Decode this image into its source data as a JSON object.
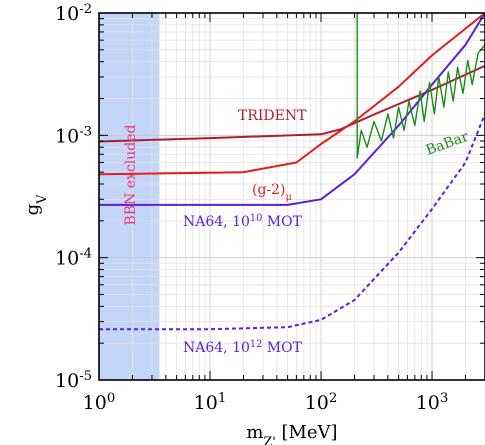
{
  "chart_data": {
    "type": "line",
    "title": "",
    "xlabel": {
      "base": "m",
      "sub": "Z'",
      "rest": " [MeV]"
    },
    "ylabel": {
      "base": "g",
      "sub": "V"
    },
    "x_scale": "log",
    "y_scale": "log",
    "xlim": [
      1,
      3000
    ],
    "ylim": [
      1e-05,
      0.01
    ],
    "grid": true,
    "x_ticks": [
      {
        "value": 1,
        "base": "10",
        "exp": "0"
      },
      {
        "value": 10,
        "base": "10",
        "exp": "1"
      },
      {
        "value": 100,
        "base": "10",
        "exp": "2"
      },
      {
        "value": 1000,
        "base": "10",
        "exp": "3"
      }
    ],
    "y_ticks": [
      {
        "value": 1e-05,
        "base": "10",
        "exp": "-5"
      },
      {
        "value": 0.0001,
        "base": "10",
        "exp": "-4"
      },
      {
        "value": 0.001,
        "base": "10",
        "exp": "-3"
      },
      {
        "value": 0.01,
        "base": "10",
        "exp": "-2"
      }
    ],
    "shaded_regions": [
      {
        "label": "BBN excluded",
        "x_range": [
          1,
          3.5
        ],
        "color": "#c3d5f8",
        "text_color": "#ee3377"
      }
    ],
    "series": [
      {
        "name": "TRIDENT",
        "color": "#b01c2e",
        "style": "solid",
        "x": [
          1,
          10,
          100,
          150,
          300,
          1000,
          3000
        ],
        "y": [
          0.00089,
          0.00095,
          0.00102,
          0.00112,
          0.00148,
          0.00235,
          0.0037
        ]
      },
      {
        "name": "(g-2)μ",
        "color": "#e8191b",
        "style": "solid",
        "x": [
          1,
          20,
          60,
          100,
          200,
          500,
          1000,
          3000
        ],
        "y": [
          0.00048,
          0.0005,
          0.0006,
          0.00085,
          0.0013,
          0.0025,
          0.0045,
          0.01
        ]
      },
      {
        "name": "NA64, 10^10 MOT",
        "color": "#5522dd",
        "style": "solid",
        "x": [
          1,
          10,
          50,
          100,
          200,
          500,
          1000,
          2000,
          3000
        ],
        "y": [
          0.00027,
          0.00027,
          0.00027,
          0.0003,
          0.00048,
          0.0012,
          0.0026,
          0.0055,
          0.01
        ]
      },
      {
        "name": "NA64, 10^12 MOT",
        "color": "#5522dd",
        "style": "dashed",
        "x": [
          1,
          10,
          50,
          100,
          200,
          500,
          1000,
          2000,
          3000
        ],
        "y": [
          2.6e-05,
          2.6e-05,
          2.7e-05,
          3.1e-05,
          4.5e-05,
          0.00011,
          0.00025,
          0.0006,
          0.0015
        ]
      },
      {
        "name": "BaBar",
        "color": "#1a8c1a",
        "style": "solid",
        "x": [
          212,
          212,
          230,
          260,
          300,
          350,
          400,
          450,
          500,
          560,
          620,
          700,
          780,
          850,
          950,
          1050,
          1150,
          1280,
          1400,
          1550,
          1700,
          1900,
          2100,
          2300,
          2600,
          3000
        ],
        "y": [
          0.01,
          0.00065,
          0.0011,
          0.0008,
          0.0013,
          0.0009,
          0.0015,
          0.00095,
          0.0017,
          0.0011,
          0.0019,
          0.0012,
          0.0023,
          0.0013,
          0.0027,
          0.0015,
          0.003,
          0.0017,
          0.0033,
          0.0019,
          0.0036,
          0.0022,
          0.0041,
          0.0026,
          0.0047,
          0.0055
        ]
      }
    ],
    "annotations": [
      {
        "for": "TRIDENT",
        "parts": [
          {
            "t": "TRIDENT"
          }
        ]
      },
      {
        "for": "(g-2)μ",
        "parts": [
          {
            "t": "(g-2)"
          },
          {
            "t": "μ",
            "sub": true
          }
        ]
      },
      {
        "for": "NA64, 10^10 MOT",
        "parts": [
          {
            "t": "NA64, 10"
          },
          {
            "t": "10",
            "sup": true
          },
          {
            "t": " MOT"
          }
        ]
      },
      {
        "for": "NA64, 10^12 MOT",
        "parts": [
          {
            "t": "NA64, 10"
          },
          {
            "t": "12",
            "sup": true
          },
          {
            "t": " MOT"
          }
        ]
      },
      {
        "for": "BaBar",
        "parts": [
          {
            "t": "BaBar"
          }
        ]
      }
    ]
  }
}
